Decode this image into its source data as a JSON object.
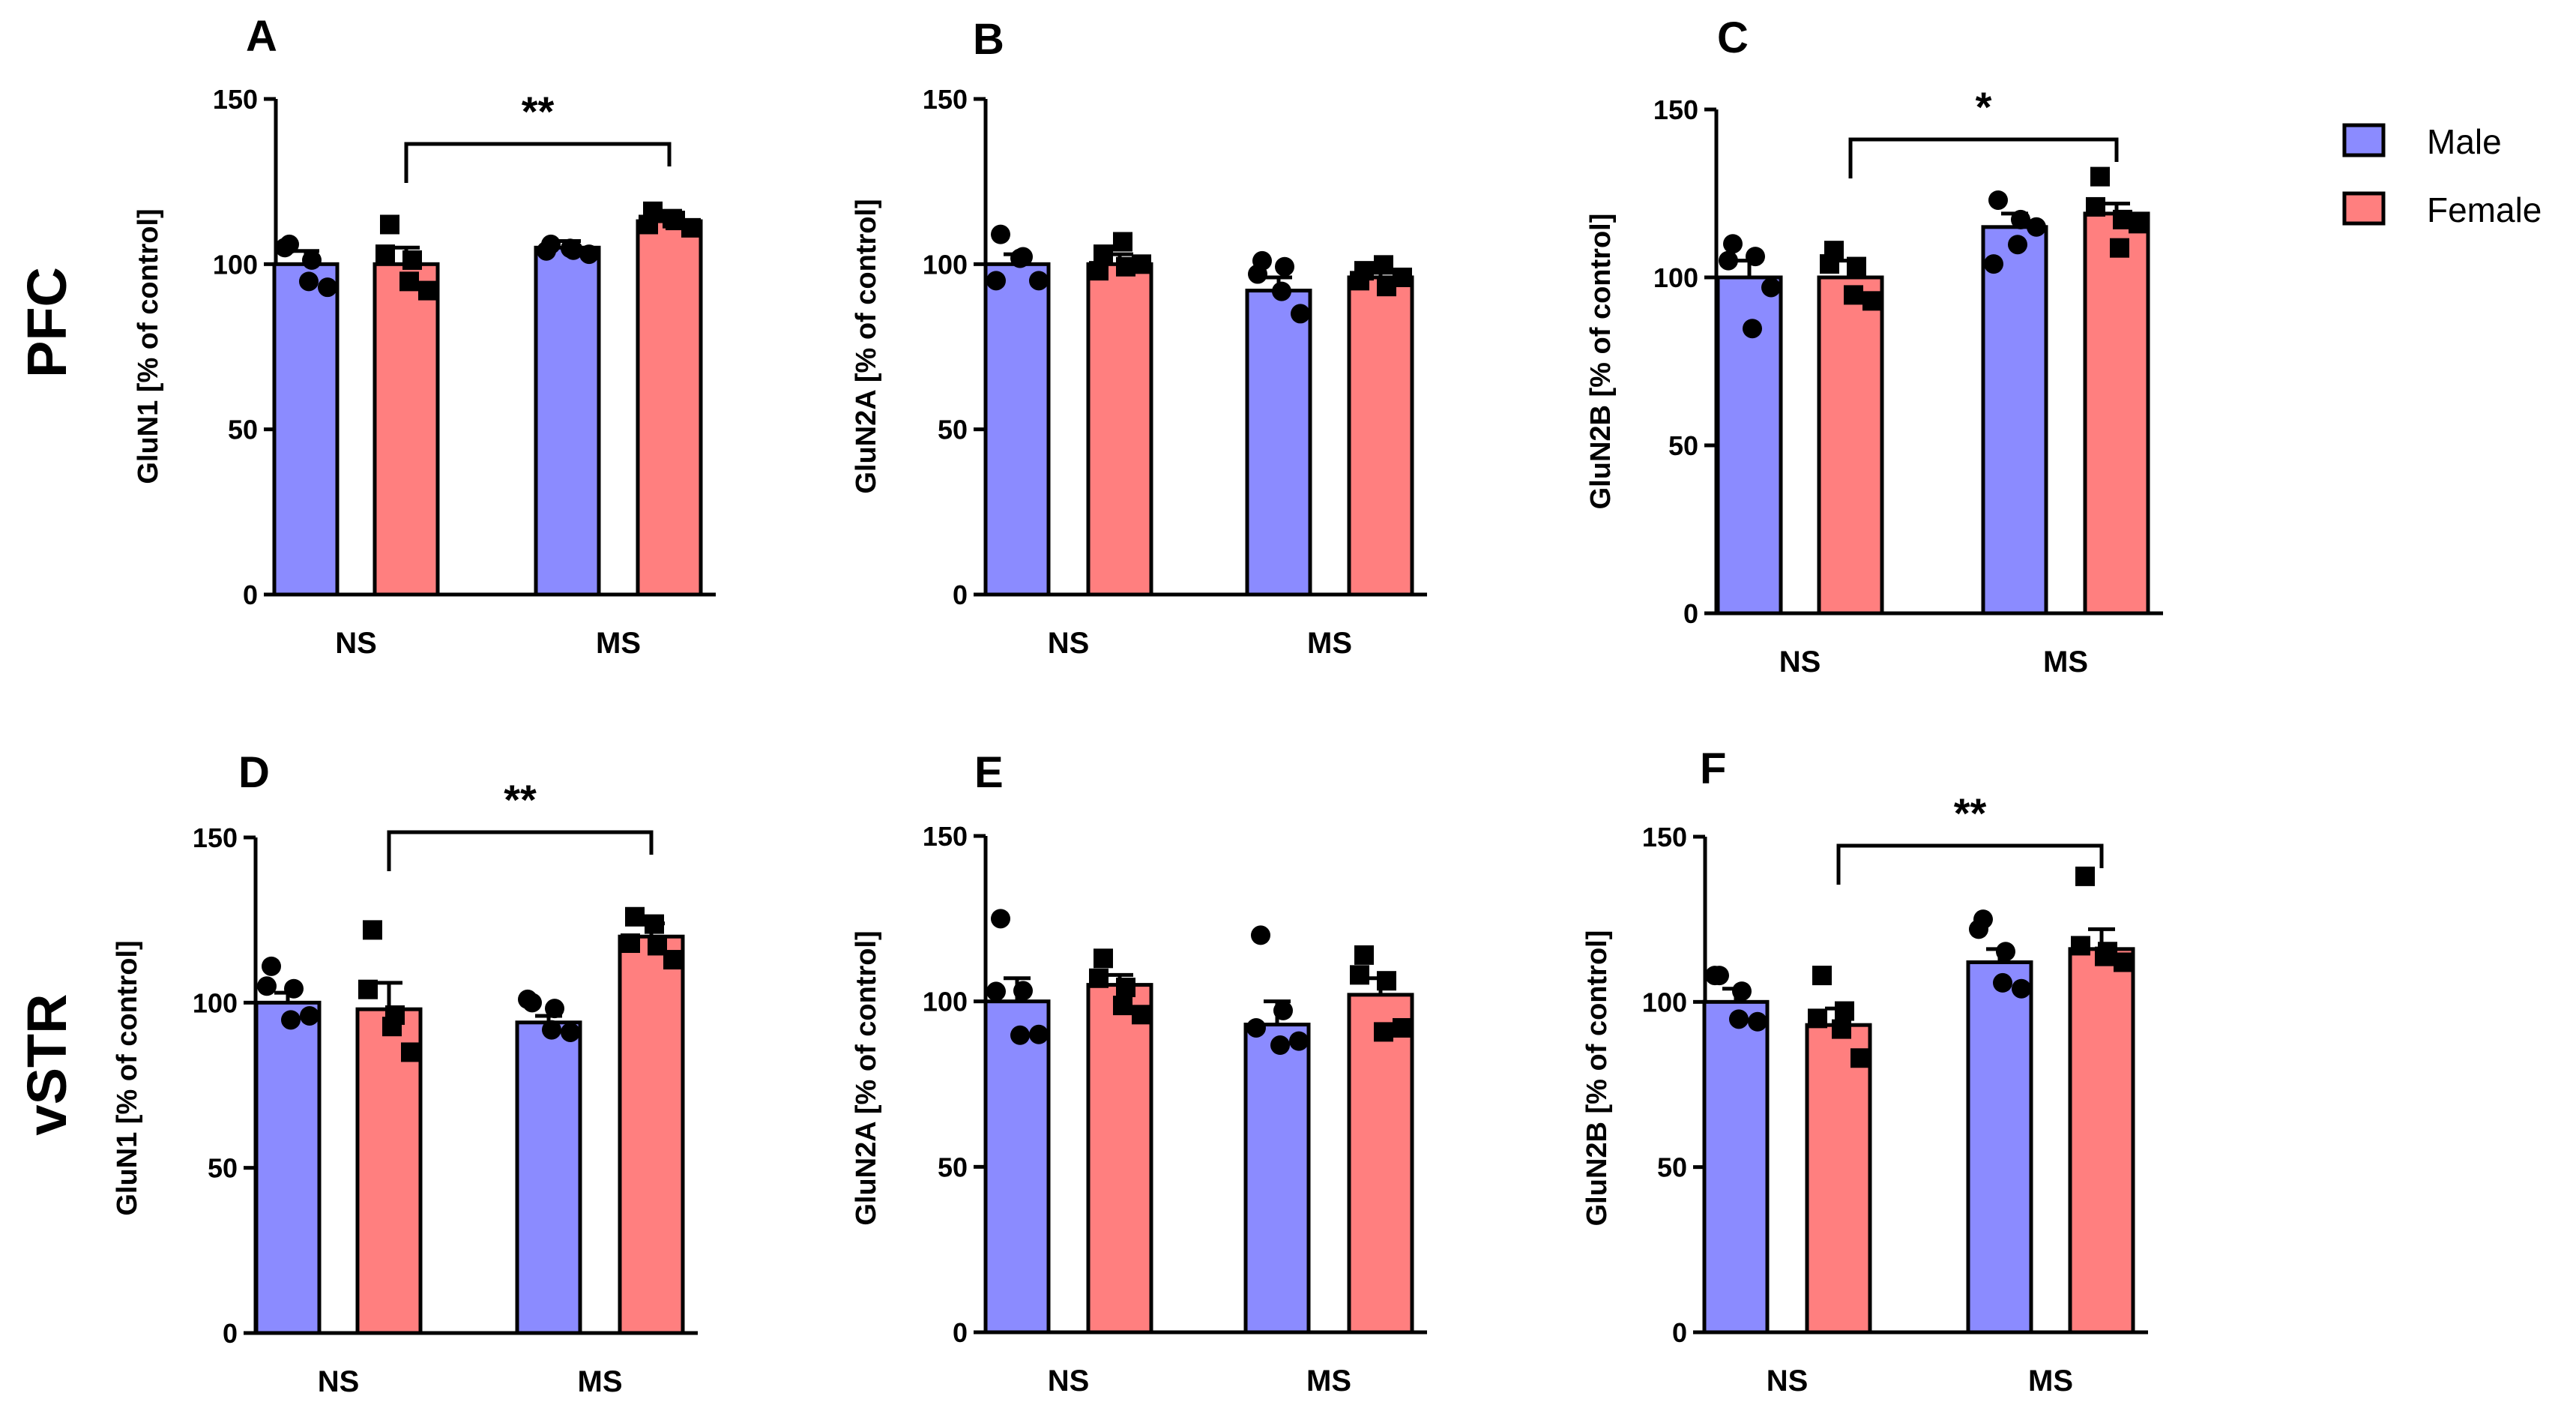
{
  "row_labels": [
    "PFC",
    "vSTR"
  ],
  "legend": [
    {
      "label": "Male",
      "color": "#8b8bff"
    },
    {
      "label": "Female",
      "color": "#ff7f7f"
    }
  ],
  "chart_data": [
    {
      "type": "bar",
      "panel": "A",
      "ylabel": "GluN1 [% of control]",
      "ylim": [
        0,
        150
      ],
      "yticks": [
        0,
        50,
        100,
        150
      ],
      "categories": [
        "NS",
        "MS"
      ],
      "series": [
        {
          "name": "Male",
          "values": [
            100,
            105
          ],
          "errors": [
            4,
            2
          ]
        },
        {
          "name": "Female",
          "values": [
            100,
            113
          ],
          "errors": [
            5,
            2
          ]
        }
      ],
      "points": {
        "Male": [
          [
            106,
            101,
            93,
            95,
            105
          ],
          [
            106,
            104,
            103,
            105,
            104
          ]
        ],
        "Female": [
          [
            112,
            101,
            92,
            95,
            103
          ],
          [
            116,
            113,
            111,
            114,
            112
          ]
        ]
      },
      "significance": {
        "from": "NS-Female",
        "to": "MS-Female",
        "label": "**"
      }
    },
    {
      "type": "bar",
      "panel": "B",
      "ylabel": "GluN2A [% of control]",
      "ylim": [
        0,
        150
      ],
      "yticks": [
        0,
        50,
        100,
        150
      ],
      "categories": [
        "NS",
        "MS"
      ],
      "series": [
        {
          "name": "Male",
          "values": [
            100,
            92
          ],
          "errors": [
            3,
            4
          ]
        },
        {
          "name": "Female",
          "values": [
            100,
            96
          ],
          "errors": [
            3,
            2
          ]
        }
      ],
      "points": {
        "Male": [
          [
            109,
            102,
            95,
            102,
            95
          ],
          [
            101,
            99,
            85,
            92,
            97
          ]
        ],
        "Female": [
          [
            103,
            99,
            100,
            107,
            98
          ],
          [
            98,
            93,
            96,
            100,
            95
          ]
        ]
      },
      "significance": null
    },
    {
      "type": "bar",
      "panel": "C",
      "ylabel": "GluN2B [% of control]",
      "ylim": [
        0,
        150
      ],
      "yticks": [
        0,
        50,
        100,
        150
      ],
      "categories": [
        "NS",
        "MS"
      ],
      "series": [
        {
          "name": "Male",
          "values": [
            100,
            115
          ],
          "errors": [
            5,
            4
          ]
        },
        {
          "name": "Female",
          "values": [
            100,
            119
          ],
          "errors": [
            5,
            3
          ]
        }
      ],
      "points": {
        "Male": [
          [
            110,
            106,
            97,
            85,
            105
          ],
          [
            123,
            117,
            115,
            110,
            104
          ]
        ],
        "Female": [
          [
            108,
            103,
            93,
            95,
            104
          ],
          [
            130,
            117,
            116,
            109,
            121
          ]
        ]
      },
      "significance": {
        "from": "NS-Female",
        "to": "MS-Female",
        "label": "*"
      }
    },
    {
      "type": "bar",
      "panel": "D",
      "ylabel": "GluN1 [% of control]",
      "ylim": [
        0,
        150
      ],
      "yticks": [
        0,
        50,
        100,
        150
      ],
      "categories": [
        "NS",
        "MS"
      ],
      "series": [
        {
          "name": "Male",
          "values": [
            100,
            94
          ],
          "errors": [
            3,
            2
          ]
        },
        {
          "name": "Female",
          "values": [
            98,
            120
          ],
          "errors": [
            8,
            4
          ]
        }
      ],
      "points": {
        "Male": [
          [
            111,
            104,
            96,
            95,
            105
          ],
          [
            100,
            98,
            91,
            92,
            101
          ]
        ],
        "Female": [
          [
            122,
            96,
            85,
            93,
            104
          ],
          [
            126,
            117,
            113,
            124,
            118
          ]
        ]
      },
      "significance": {
        "from": "NS-Female",
        "to": "MS-Female",
        "label": "**"
      }
    },
    {
      "type": "bar",
      "panel": "E",
      "ylabel": "GluN2A [% of control]",
      "ylim": [
        0,
        150
      ],
      "yticks": [
        0,
        50,
        100,
        150
      ],
      "categories": [
        "NS",
        "MS"
      ],
      "series": [
        {
          "name": "Male",
          "values": [
            100,
            93
          ],
          "errors": [
            7,
            7
          ]
        },
        {
          "name": "Female",
          "values": [
            105,
            102
          ],
          "errors": [
            3,
            5
          ]
        }
      ],
      "points": {
        "Male": [
          [
            125,
            103,
            90,
            90,
            103
          ],
          [
            120,
            97,
            88,
            87,
            92
          ]
        ],
        "Female": [
          [
            113,
            104,
            96,
            99,
            107
          ],
          [
            114,
            106,
            92,
            91,
            108
          ]
        ]
      },
      "significance": null
    },
    {
      "type": "bar",
      "panel": "F",
      "ylabel": "GluN2B [% of control]",
      "ylim": [
        0,
        150
      ],
      "yticks": [
        0,
        50,
        100,
        150
      ],
      "categories": [
        "NS",
        "MS"
      ],
      "series": [
        {
          "name": "Male",
          "values": [
            100,
            112
          ],
          "errors": [
            4,
            4
          ]
        },
        {
          "name": "Female",
          "values": [
            93,
            116
          ],
          "errors": [
            5,
            6
          ]
        }
      ],
      "points": {
        "Male": [
          [
            108,
            103,
            94,
            95,
            108
          ],
          [
            125,
            115,
            104,
            106,
            122
          ]
        ],
        "Female": [
          [
            108,
            97,
            83,
            92,
            95
          ],
          [
            138,
            115,
            112,
            114,
            117
          ]
        ]
      },
      "significance": {
        "from": "NS-Female",
        "to": "MS-Female",
        "label": "**"
      }
    }
  ]
}
